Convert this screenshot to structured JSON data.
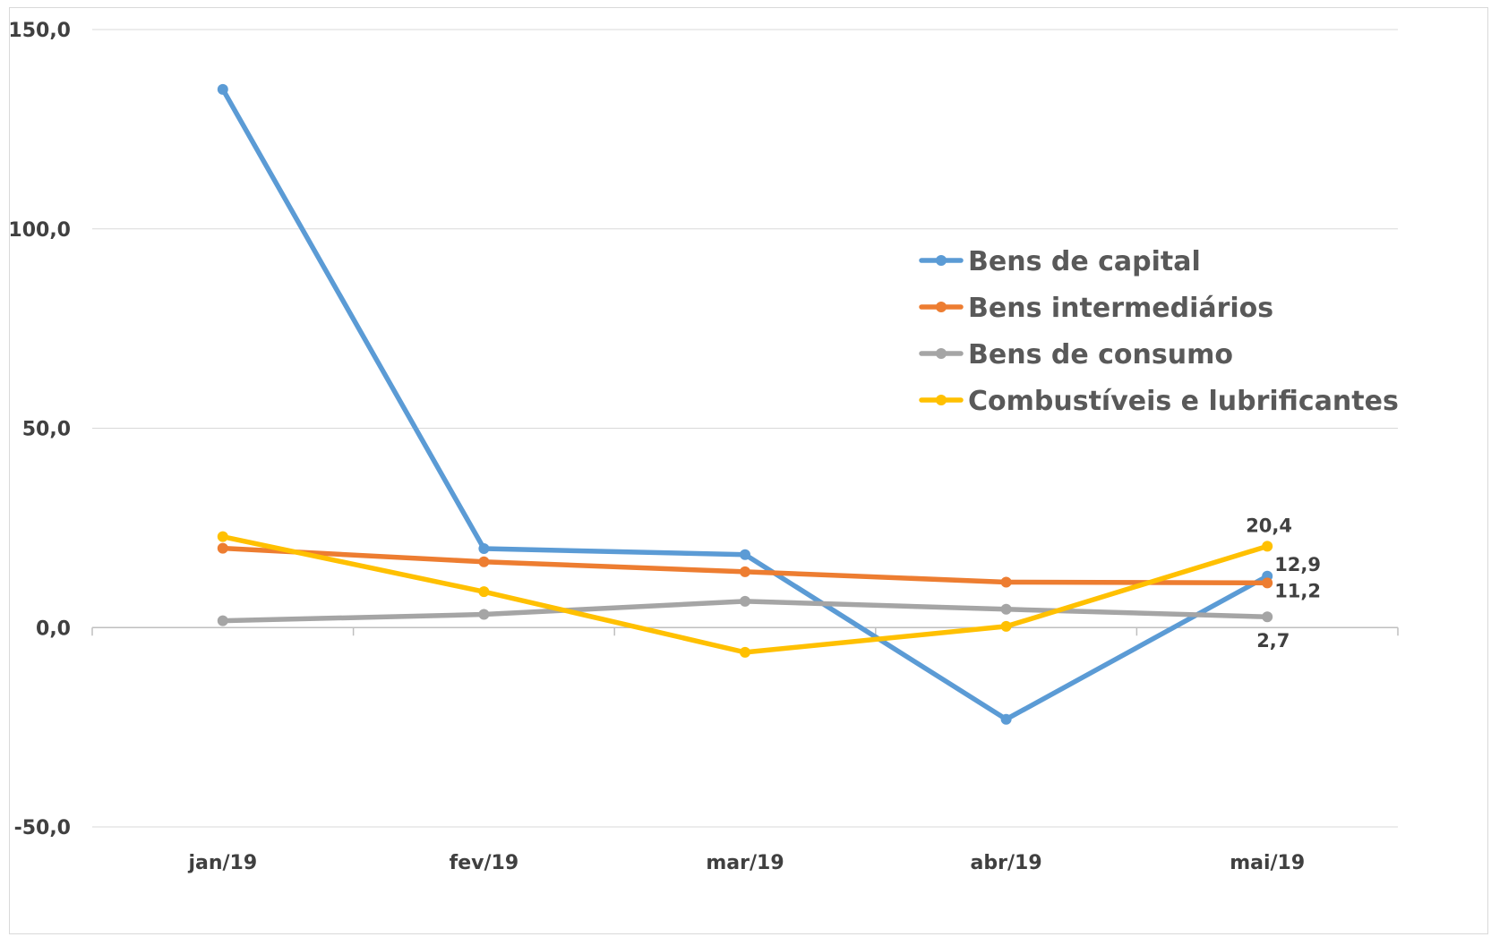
{
  "chart_data": {
    "type": "line",
    "categories": [
      "jan/19",
      "fev/19",
      "mar/19",
      "abr/19",
      "mai/19"
    ],
    "series": [
      {
        "name": "Bens de capital",
        "color": "#5B9BD5",
        "values": [
          135.0,
          19.8,
          18.3,
          -23.0,
          12.9
        ]
      },
      {
        "name": "Bens intermediários",
        "color": "#ED7D31",
        "values": [
          19.9,
          16.5,
          14.0,
          11.4,
          11.2
        ]
      },
      {
        "name": "Bens de consumo",
        "color": "#A5A5A5",
        "values": [
          1.7,
          3.3,
          6.6,
          4.6,
          2.7
        ]
      },
      {
        "name": "Combustíveis e lubrificantes",
        "color": "#FFC000",
        "values": [
          22.8,
          9.0,
          -6.2,
          0.3,
          20.4
        ]
      }
    ],
    "y_ticks": [
      "150,0",
      "100,0",
      "50,0",
      "0,0",
      "-50,0"
    ],
    "ylim": [
      -50,
      150
    ],
    "ytick_step": 50,
    "grid": true,
    "legend_position": "right",
    "data_labels": [
      {
        "series": 0,
        "point": 4,
        "text": "12,9"
      },
      {
        "series": 1,
        "point": 4,
        "text": "11,2"
      },
      {
        "series": 2,
        "point": 4,
        "text": "2,7"
      },
      {
        "series": 3,
        "point": 4,
        "text": "20,4"
      }
    ],
    "title": "",
    "xlabel": "",
    "ylabel": ""
  }
}
